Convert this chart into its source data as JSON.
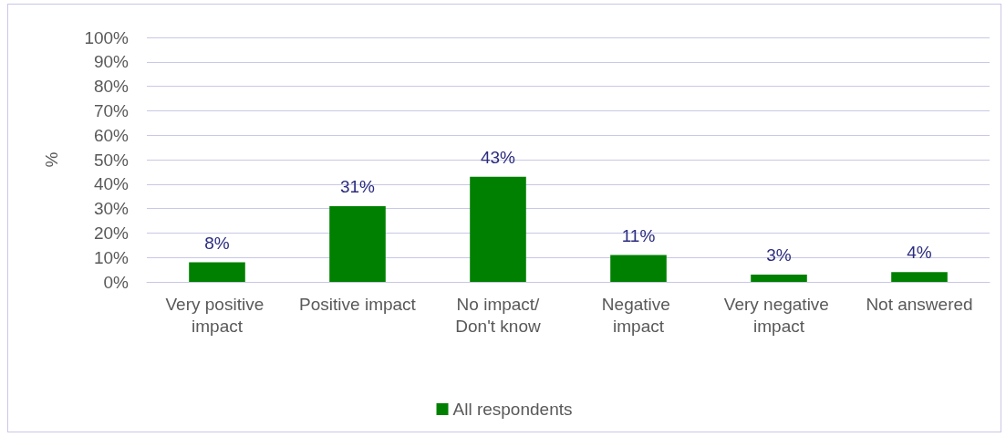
{
  "chart_data": {
    "type": "bar",
    "ylabel": "%",
    "categories": [
      "Very positive impact",
      "Positive impact",
      "No impact/Don't know",
      "Negative impact",
      "Very negative impact",
      "Not answered"
    ],
    "series": [
      {
        "name": "All respondents",
        "color": "#008000",
        "values": [
          8,
          31,
          43,
          11,
          3,
          4
        ],
        "value_labels": [
          "8%",
          "31%",
          "43%",
          "11%",
          "3%",
          "4%"
        ]
      }
    ],
    "ylim": [
      0,
      100
    ],
    "yticks": [
      {
        "value": 0,
        "label": "0%"
      },
      {
        "value": 10,
        "label": "10%"
      },
      {
        "value": 20,
        "label": "20%"
      },
      {
        "value": 30,
        "label": "30%"
      },
      {
        "value": 40,
        "label": "40%"
      },
      {
        "value": 50,
        "label": "50%"
      },
      {
        "value": 60,
        "label": "60%"
      },
      {
        "value": 70,
        "label": "70%"
      },
      {
        "value": 80,
        "label": "80%"
      },
      {
        "value": 90,
        "label": "90%"
      },
      {
        "value": 100,
        "label": "100%"
      }
    ],
    "grid": "y",
    "legend": "bottom"
  }
}
